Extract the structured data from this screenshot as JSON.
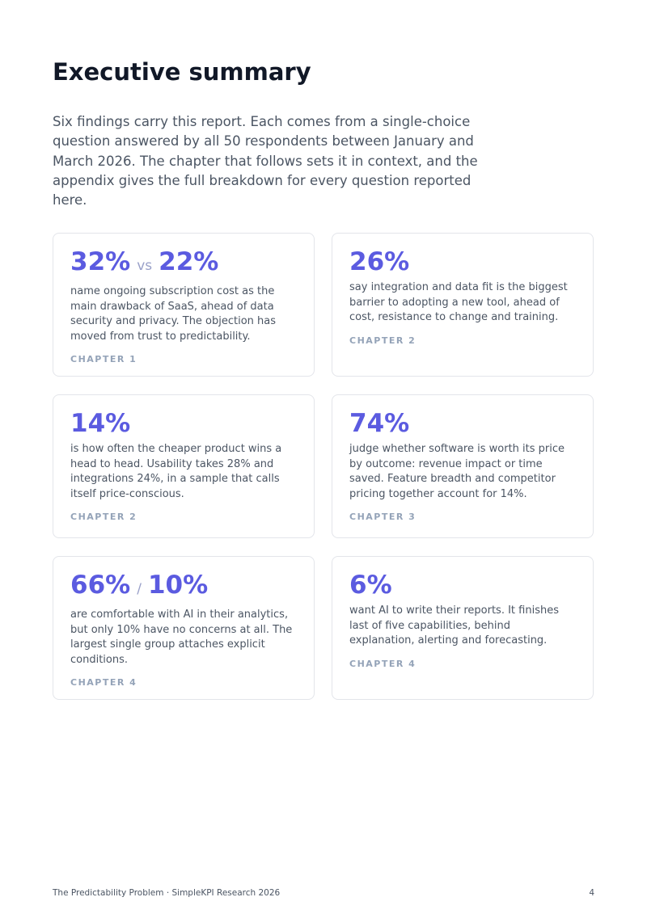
{
  "header": {
    "title": "Executive summary",
    "intro": "Six findings carry this report. Each comes from a single-choice question answered by all 50 respondents between January and March 2026. The chapter that follows sets it in context, and the appendix gives the full breakdown for every question reported here."
  },
  "cards": [
    {
      "stat": [
        "32%",
        "22%"
      ],
      "joiner": "vs",
      "text": "name ongoing subscription cost as the main drawback of SaaS, ahead of data security and privacy. The objection has moved from trust to predictability.",
      "chapter": "CHAPTER 1"
    },
    {
      "stat": [
        "26%"
      ],
      "text": "say integration and data fit is the biggest barrier to adopting a new tool, ahead of cost, resistance to change and training.",
      "chapter": "CHAPTER 2"
    },
    {
      "stat": [
        "14%"
      ],
      "text": "is how often the cheaper product wins a head to head. Usability takes 28% and integrations 24%, in a sample that calls itself price-conscious.",
      "chapter": "CHAPTER 2"
    },
    {
      "stat": [
        "74%"
      ],
      "text": "judge whether software is worth its price by outcome: revenue impact or time saved. Feature breadth and competitor pricing together account for 14%.",
      "chapter": "CHAPTER 3"
    },
    {
      "stat": [
        "66%",
        "10%"
      ],
      "joiner": "/",
      "text": "are comfortable with AI in their analytics, but only 10% have no concerns at all. The largest single group attaches explicit conditions.",
      "chapter": "CHAPTER 4"
    },
    {
      "stat": [
        "6%"
      ],
      "text": "want AI to write their reports. It finishes last of five capabilities, behind explanation, alerting and forecasting.",
      "chapter": "CHAPTER 4"
    }
  ],
  "footer": {
    "left": "The Predictability Problem · SimpleKPI Research 2026",
    "page": "4"
  }
}
